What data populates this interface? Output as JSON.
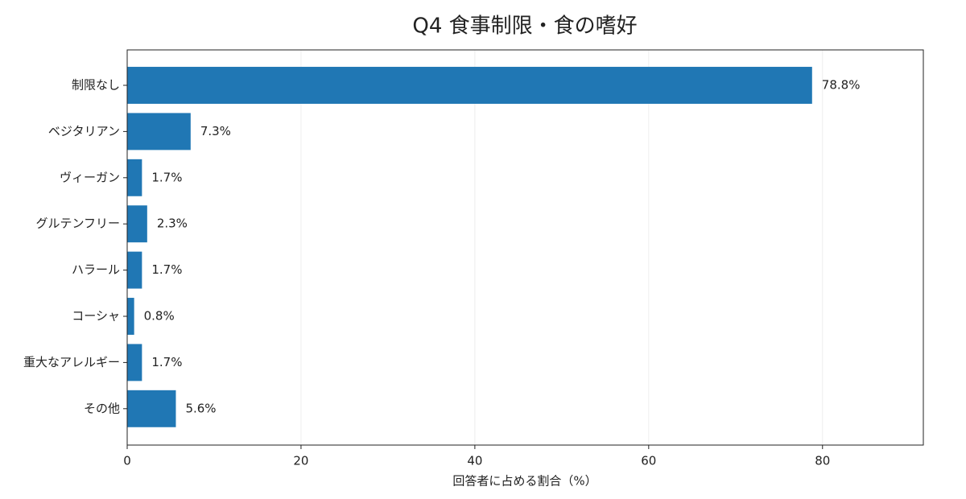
{
  "chart_data": {
    "type": "barh",
    "title": "Q4 食事制限・食の嗜好",
    "xlabel": "回答者に占める割合（%）",
    "categories": [
      "制限なし",
      "ベジタリアン",
      "ヴィーガン",
      "グルテンフリー",
      "ハラール",
      "コーシャ",
      "重大なアレルギー",
      "その他"
    ],
    "values": [
      78.8,
      7.3,
      1.7,
      2.3,
      1.7,
      0.8,
      1.7,
      5.6
    ],
    "value_labels": [
      "78.8%",
      "7.3%",
      "1.7%",
      "2.3%",
      "1.7%",
      "0.8%",
      "1.7%",
      "5.6%"
    ],
    "color": "#2077b4",
    "xlim": [
      0,
      91.6
    ],
    "xticks": [
      0,
      20,
      40,
      60,
      80
    ],
    "grid": true
  }
}
